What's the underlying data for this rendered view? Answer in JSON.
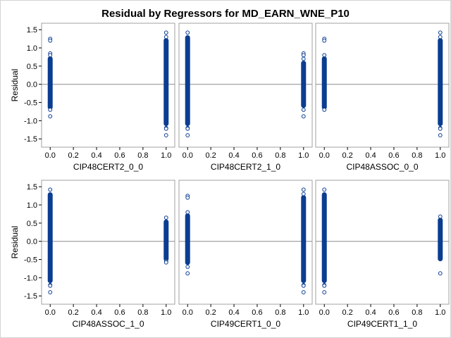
{
  "title": "Residual by Regressors for MD_EARN_WNE_P10",
  "chart_data": {
    "type": "scatter",
    "title": "Residual by Regressors for MD_EARN_WNE_P10",
    "ylabel": "Residual",
    "xlim": [
      -0.05,
      1.05
    ],
    "ylim": [
      -1.65,
      1.6
    ],
    "x_ticks": [
      "0.0",
      "0.2",
      "0.4",
      "0.6",
      "0.8",
      "1.0"
    ],
    "y_ticks": [
      "-1.5",
      "-1.0",
      "-0.5",
      "0.0",
      "0.5",
      "1.0",
      "1.5"
    ],
    "reference_line_y": 0,
    "grid": false,
    "marker": "open-circle",
    "marker_color": "#0b3d91",
    "panels": [
      {
        "xlabel": "CIP48CERT2_0_0",
        "series": [
          {
            "x": 0,
            "dense_range": [
              -0.65,
              0.72
            ],
            "outliers": [
              1.25,
              1.2,
              0.85,
              0.8,
              -0.7,
              -0.88
            ]
          },
          {
            "x": 1,
            "dense_range": [
              -1.1,
              1.22
            ],
            "outliers": [
              1.42,
              1.3,
              -1.2,
              -1.22,
              -1.4
            ]
          }
        ]
      },
      {
        "xlabel": "CIP48CERT2_1_0",
        "series": [
          {
            "x": 0,
            "dense_range": [
              -1.1,
              1.3
            ],
            "outliers": [
              1.42,
              -1.2,
              -1.22,
              -1.4
            ]
          },
          {
            "x": 1,
            "dense_range": [
              -0.6,
              0.6
            ],
            "outliers": [
              0.85,
              0.8,
              0.7,
              -0.7,
              -0.88
            ]
          }
        ]
      },
      {
        "xlabel": "CIP48ASSOC_0_0",
        "series": [
          {
            "x": 0,
            "dense_range": [
              -0.65,
              0.72
            ],
            "outliers": [
              1.25,
              1.2,
              0.8,
              -0.7
            ]
          },
          {
            "x": 1,
            "dense_range": [
              -1.1,
              1.22
            ],
            "outliers": [
              1.42,
              1.3,
              -1.2,
              -1.22,
              -1.4
            ]
          }
        ]
      },
      {
        "xlabel": "CIP48ASSOC_1_0",
        "series": [
          {
            "x": 0,
            "dense_range": [
              -1.1,
              1.3
            ],
            "outliers": [
              1.42,
              -1.2,
              -1.22,
              -1.4
            ]
          },
          {
            "x": 1,
            "dense_range": [
              -0.5,
              0.55
            ],
            "outliers": [
              0.65,
              -0.55,
              -0.58
            ]
          }
        ]
      },
      {
        "xlabel": "CIP49CERT1_0_0",
        "series": [
          {
            "x": 0,
            "dense_range": [
              -0.6,
              0.72
            ],
            "outliers": [
              1.25,
              1.2,
              0.8,
              -0.7,
              -0.88
            ]
          },
          {
            "x": 1,
            "dense_range": [
              -1.1,
              1.22
            ],
            "outliers": [
              1.42,
              1.3,
              -1.2,
              -1.22,
              -1.4
            ]
          }
        ]
      },
      {
        "xlabel": "CIP49CERT1_1_0",
        "series": [
          {
            "x": 0,
            "dense_range": [
              -1.1,
              1.3
            ],
            "outliers": [
              1.42,
              -1.2,
              -1.22,
              -1.4
            ]
          },
          {
            "x": 1,
            "dense_range": [
              -0.5,
              0.6
            ],
            "outliers": [
              0.68,
              -0.88
            ]
          }
        ]
      }
    ]
  }
}
